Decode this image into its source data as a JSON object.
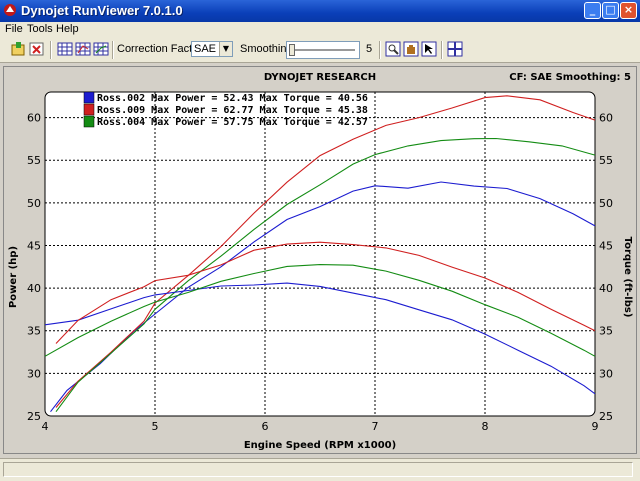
{
  "window": {
    "title": "Dynojet RunViewer 7.0.1.0",
    "min_label": "_",
    "max_label": "□",
    "close_label": "×"
  },
  "menu": [
    {
      "label": "File"
    },
    {
      "label": "Tools"
    },
    {
      "label": "Help"
    }
  ],
  "toolbar": {
    "correction_label": "Correction Factor:",
    "correction_value": "SAE",
    "smoothing_label": "Smoothing:",
    "smoothing_value": "5"
  },
  "chart_header": {
    "title": "DYNOJET RESEARCH",
    "info": "CF: SAE  Smoothing: 5"
  },
  "colors": {
    "run_002": "#1c1cd0",
    "run_009": "#d02020",
    "run_004": "#148c14",
    "plot_bg": "#ffffff",
    "grid": "#000000"
  },
  "chart_data": {
    "type": "line",
    "title": "DYNOJET RESEARCH",
    "xlabel": "Engine Speed (RPM x1000)",
    "ylabel": "Power (hp)",
    "y2label": "Torque (ft-lbs)",
    "xlim": [
      4,
      9
    ],
    "ylim": [
      25,
      63
    ],
    "xticks": [
      4,
      5,
      6,
      7,
      8,
      9
    ],
    "yticks": [
      25,
      30,
      35,
      40,
      45,
      50,
      55,
      60
    ],
    "grid": true,
    "legend_position": "top-left",
    "series": [
      {
        "name": "Ross.002",
        "legend": "Ross.002 Max Power = 52.43 Max Torque = 40.56",
        "measure": "power",
        "color": "#1c1cd0",
        "x": [
          4.05,
          4.2,
          4.5,
          4.8,
          5.0,
          5.3,
          5.6,
          5.9,
          6.2,
          6.5,
          6.8,
          7.0,
          7.3,
          7.6,
          7.9,
          8.2,
          8.5,
          8.8,
          9.0
        ],
        "y": [
          25.5,
          28,
          31.2,
          34.8,
          37,
          40,
          42.5,
          45.5,
          48,
          49.6,
          51.3,
          52,
          51.8,
          52.4,
          52,
          51.6,
          50.5,
          48.8,
          47.3
        ]
      },
      {
        "name": "Ross.009",
        "measure": "power",
        "color": "#d02020",
        "x": [
          4.1,
          4.3,
          4.6,
          4.9,
          5.0,
          5.3,
          5.6,
          5.9,
          6.2,
          6.5,
          6.8,
          7.1,
          7.4,
          7.7,
          8.0,
          8.2,
          8.5,
          8.8,
          9.0
        ],
        "y": [
          26,
          29,
          32.5,
          36.2,
          38.2,
          41.5,
          44.8,
          48.8,
          52.5,
          55.5,
          57.5,
          59,
          60,
          61.2,
          62.3,
          62.6,
          62,
          60.6,
          59.7
        ]
      },
      {
        "name": "Ross.004",
        "measure": "power",
        "color": "#148c14",
        "x": [
          4.1,
          4.3,
          4.6,
          4.9,
          5.0,
          5.3,
          5.6,
          5.9,
          6.2,
          6.5,
          6.8,
          7.0,
          7.3,
          7.6,
          7.9,
          8.1,
          8.4,
          8.7,
          9.0
        ],
        "y": [
          25.5,
          29,
          32.3,
          35.8,
          37.6,
          40.8,
          43.8,
          46.8,
          49.8,
          52.2,
          54.5,
          55.7,
          56.6,
          57.3,
          57.6,
          57.5,
          57.2,
          56.6,
          55.6
        ]
      },
      {
        "name": "Ross.002 torque",
        "measure": "torque",
        "color": "#1c1cd0",
        "x": [
          4.0,
          4.3,
          4.6,
          4.9,
          5.0,
          5.3,
          5.6,
          5.9,
          6.2,
          6.5,
          6.8,
          7.1,
          7.4,
          7.7,
          8.0,
          8.3,
          8.6,
          8.9,
          9.0
        ],
        "y": [
          35.7,
          36.2,
          37.6,
          38.8,
          39.2,
          39.8,
          40.2,
          40.4,
          40.5,
          40.2,
          39.5,
          38.6,
          37.5,
          36.2,
          34.6,
          32.8,
          30.8,
          28.6,
          27.6
        ]
      },
      {
        "name": "Ross.009 torque",
        "measure": "torque",
        "color": "#d02020",
        "x": [
          4.1,
          4.3,
          4.6,
          4.9,
          5.0,
          5.3,
          5.6,
          5.9,
          6.2,
          6.5,
          6.8,
          7.1,
          7.4,
          7.7,
          8.0,
          8.3,
          8.6,
          8.9,
          9.0
        ],
        "y": [
          33.5,
          36.3,
          38.6,
          40.2,
          40.8,
          41.5,
          42.8,
          44.4,
          45.2,
          45.3,
          45.1,
          44.8,
          43.8,
          42.5,
          41.1,
          39.5,
          37.6,
          35.6,
          35
        ]
      },
      {
        "name": "Ross.004 torque",
        "measure": "torque",
        "color": "#148c14",
        "x": [
          4.0,
          4.3,
          4.6,
          4.9,
          5.0,
          5.3,
          5.6,
          5.9,
          6.2,
          6.5,
          6.8,
          7.1,
          7.4,
          7.7,
          8.0,
          8.3,
          8.6,
          8.9,
          9.0
        ],
        "y": [
          32,
          34.2,
          36.2,
          37.8,
          38.4,
          39.4,
          40.8,
          41.8,
          42.5,
          42.8,
          42.6,
          42,
          41,
          39.6,
          38.1,
          36.5,
          34.7,
          32.8,
          32
        ]
      }
    ],
    "legend": [
      {
        "text": "Ross.002 Max Power = 52.43 Max Torque = 40.56",
        "color": "#1c1cd0"
      },
      {
        "text": "Ross.009 Max Power = 62.77 Max Torque = 45.38",
        "color": "#d02020"
      },
      {
        "text": "Ross.004 Max Power = 57.75 Max Torque = 42.57",
        "color": "#148c14"
      }
    ]
  },
  "status": {
    "text": ""
  }
}
